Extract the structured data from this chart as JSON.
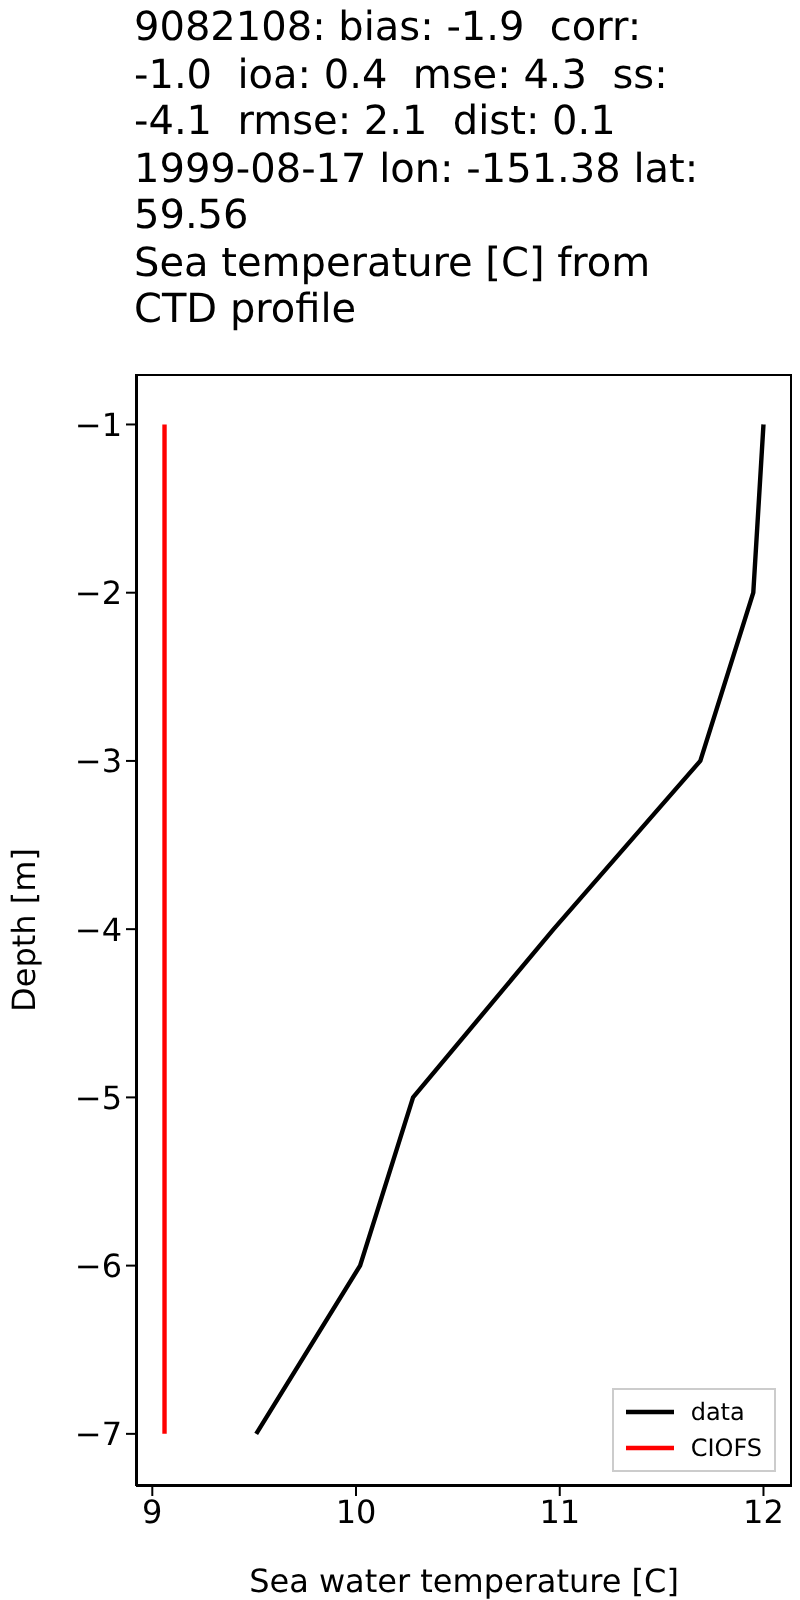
{
  "chart_data": {
    "type": "line",
    "title": "9082108: bias: -1.9  corr: -1.0  ioa: 0.4  mse: 4.3  ss: -4.1  rmse: 2.1  dist: 0.1 1999-08-17 lon: -151.38 lat: 59.56\nSea temperature [C] from CTD profile",
    "xlabel": "Sea water temperature [C]",
    "ylabel": "Depth [m]",
    "series": [
      {
        "name": "data",
        "color": "#000000",
        "x": [
          12.0,
          11.95,
          11.69,
          10.97,
          10.28,
          10.02,
          9.51
        ],
        "values": [
          -1,
          -2,
          -3,
          -4,
          -5,
          -6,
          -7
        ]
      },
      {
        "name": "CIOFS",
        "color": "#ff0000",
        "x": [
          9.06,
          9.06,
          9.06,
          9.06,
          9.06,
          9.06,
          9.06
        ],
        "values": [
          -1,
          -2,
          -3,
          -4,
          -5,
          -6,
          -7
        ]
      }
    ],
    "xlim": [
      8.92,
      12.14
    ],
    "xticks": [
      9,
      10,
      11,
      12
    ],
    "ylim": [
      -7.31,
      -0.7
    ],
    "yticks": [
      -7,
      -6,
      -5,
      -4,
      -3,
      -2,
      -1
    ],
    "grid": false,
    "legend": "bottom right",
    "marker": "none",
    "line_style": "solid"
  }
}
